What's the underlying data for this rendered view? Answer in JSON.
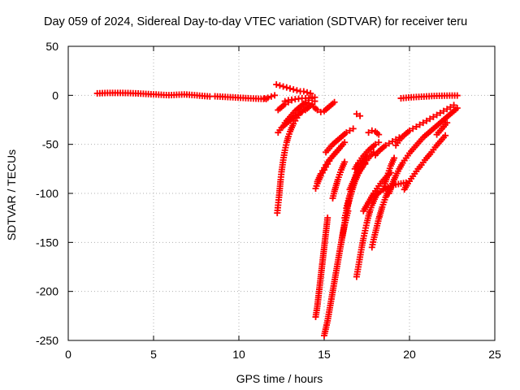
{
  "chart_data": {
    "type": "scatter",
    "title": "Day 059 of 2024, Sidereal Day-to-day VTEC variation (SDTVAR) for receiver teru",
    "xlabel": "GPS time / hours",
    "ylabel": "SDTVAR / TECUs",
    "xlim": [
      0,
      25
    ],
    "ylim": [
      -250,
      50
    ],
    "xticks": [
      0,
      5,
      10,
      15,
      20,
      25
    ],
    "yticks": [
      -250,
      -200,
      -150,
      -100,
      -50,
      0,
      50
    ],
    "grid": true,
    "marker": "plus",
    "color": "#ff0000",
    "series": [
      {
        "x": [
          1.7,
          2.0,
          2.3,
          2.6,
          2.9,
          3.2,
          3.5,
          3.8,
          4.1,
          4.4,
          4.7,
          5.0,
          5.3,
          5.6,
          5.9,
          6.2,
          6.5,
          6.8,
          7.1,
          7.4,
          7.7,
          8.0,
          8.3
        ],
        "y": [
          2,
          2.2,
          2.4,
          2.5,
          2.5,
          2.4,
          2.3,
          2.1,
          1.9,
          1.6,
          1.3,
          1.0,
          0.7,
          0.4,
          0.2,
          0.4,
          0.7,
          0.9,
          0.6,
          0.2,
          -0.3,
          -0.8,
          -1.2
        ]
      },
      {
        "x": [
          8.6,
          8.9,
          9.2,
          9.5,
          9.8,
          10.1,
          10.4,
          10.7,
          11.0,
          11.3,
          11.6
        ],
        "y": [
          -1,
          -1.3,
          -1.6,
          -1.9,
          -2.2,
          -2.5,
          -2.8,
          -3.1,
          -3.3,
          -3.6,
          -3.8
        ]
      },
      {
        "x": [
          11.5,
          11.7,
          11.9,
          12.1
        ],
        "y": [
          -3,
          -2.5,
          -1.2,
          0
        ]
      },
      {
        "x": [
          12.25,
          12.3,
          12.35,
          12.4,
          12.45,
          12.5,
          12.6,
          12.7,
          12.8,
          12.9,
          13.0,
          13.1,
          13.2,
          13.3,
          13.4,
          13.5,
          13.6,
          13.7,
          13.8,
          13.9,
          14.0,
          14.1
        ],
        "y": [
          -120,
          -112,
          -104,
          -95,
          -86,
          -78,
          -66,
          -56,
          -48,
          -42,
          -37,
          -33,
          -29,
          -26,
          -23,
          -20,
          -18,
          -16,
          -14,
          -12,
          -10,
          -8
        ]
      },
      {
        "x": [
          12.3,
          12.5,
          12.7,
          12.9,
          13.1,
          13.3,
          13.5,
          13.7,
          13.9,
          14.1,
          14.3,
          14.45
        ],
        "y": [
          -38,
          -33,
          -30,
          -27,
          -24,
          -21,
          -19,
          -17,
          -15,
          -12,
          -9,
          -6
        ]
      },
      {
        "x": [
          12.7,
          12.9,
          13.1,
          13.3,
          13.5,
          13.7,
          13.9,
          14.1,
          14.3,
          14.45
        ],
        "y": [
          -28,
          -24,
          -20,
          -16,
          -13,
          -10,
          -7,
          -5,
          -3,
          -2
        ]
      },
      {
        "x": [
          12.7,
          12.9,
          13.1,
          13.3,
          13.5,
          13.7,
          13.9,
          14.1,
          14.3
        ],
        "y": [
          -6,
          -5,
          -4.5,
          -4,
          -3.5,
          -3,
          -3,
          -2.5,
          -2
        ]
      },
      {
        "x": [
          12.2,
          12.4,
          12.6,
          12.8,
          13.0,
          13.2,
          13.4,
          13.6,
          13.8,
          14.0,
          14.2
        ],
        "y": [
          11,
          10,
          9,
          8,
          7,
          6,
          5,
          4,
          4,
          3,
          2
        ]
      },
      {
        "x": [
          12.3,
          12.5,
          12.7,
          12.9,
          13.1
        ],
        "y": [
          -15,
          -12,
          -9,
          -7,
          -5
        ]
      },
      {
        "x": [
          14.4,
          14.6,
          14.8,
          15.0,
          15.2,
          15.4,
          15.6
        ],
        "y": [
          -12,
          -15,
          -17,
          -16,
          -13,
          -10,
          -7
        ]
      },
      {
        "x": [
          14.5,
          14.6,
          14.7,
          14.8,
          14.9,
          15.0,
          15.1,
          15.2,
          15.3,
          15.4,
          15.5,
          15.6,
          15.7,
          15.8,
          15.9,
          16.0,
          16.1,
          16.2
        ],
        "y": [
          -95,
          -90,
          -86,
          -82,
          -79,
          -76,
          -73,
          -70,
          -67,
          -64,
          -62,
          -60,
          -58,
          -56,
          -54,
          -52,
          -50,
          -48
        ]
      },
      {
        "x": [
          14.6,
          14.7,
          14.8,
          14.9,
          15.0,
          15.1,
          15.2,
          15.3,
          15.4,
          15.5,
          15.6,
          15.7,
          15.8,
          15.9,
          16.0
        ],
        "y": [
          -88,
          -84,
          -80,
          -77,
          -74,
          -71,
          -68,
          -66,
          -64,
          -62,
          -60,
          -58,
          -56,
          -54,
          -52
        ]
      },
      {
        "x": [
          14.5,
          14.6,
          14.7,
          14.8,
          14.9,
          15.0,
          15.1,
          15.2
        ],
        "y": [
          -226,
          -215,
          -200,
          -185,
          -170,
          -155,
          -140,
          -125
        ]
      },
      {
        "x": [
          15.0,
          15.2,
          15.4,
          15.6,
          15.8,
          16.0,
          16.2,
          16.4
        ],
        "y": [
          -245,
          -230,
          -210,
          -190,
          -170,
          -150,
          -132,
          -118
        ]
      },
      {
        "x": [
          15.1,
          15.3,
          15.5,
          15.7,
          15.9,
          16.1,
          16.3,
          16.5,
          16.7
        ],
        "y": [
          -58,
          -54,
          -50,
          -47,
          -44,
          -41,
          -38,
          -36,
          -34
        ]
      },
      {
        "x": [
          15.5,
          15.6,
          15.7,
          15.8,
          15.9,
          16.0,
          16.1,
          16.2
        ],
        "y": [
          -105,
          -98,
          -92,
          -86,
          -81,
          -76,
          -72,
          -68
        ]
      },
      {
        "x": [
          16.0,
          16.1,
          16.2,
          16.3,
          16.4,
          16.5,
          16.6,
          16.7,
          16.8,
          16.9,
          17.0
        ],
        "y": [
          -150,
          -140,
          -130,
          -120,
          -111,
          -103,
          -96,
          -90,
          -84,
          -79,
          -75
        ]
      },
      {
        "x": [
          16.2,
          16.35,
          16.5,
          16.65,
          16.8,
          16.95,
          17.1,
          17.25,
          17.4
        ],
        "y": [
          -125,
          -115,
          -105,
          -96,
          -88,
          -82,
          -77,
          -73,
          -70
        ]
      },
      {
        "x": [
          16.3,
          16.45,
          16.6,
          16.75,
          16.9,
          17.05,
          17.2,
          17.35,
          17.5
        ],
        "y": [
          -115,
          -105,
          -96,
          -88,
          -81,
          -75,
          -70,
          -66,
          -62
        ]
      },
      {
        "x": [
          16.5,
          16.7,
          16.9,
          17.1,
          17.3,
          17.5,
          17.7,
          17.9
        ],
        "y": [
          -96,
          -88,
          -82,
          -76,
          -71,
          -66,
          -62,
          -58
        ]
      },
      {
        "x": [
          16.8,
          17.0,
          17.2,
          17.4,
          17.6,
          17.8,
          18.0,
          18.2
        ],
        "y": [
          -75,
          -69,
          -64,
          -60,
          -56,
          -53,
          -50,
          -48
        ]
      },
      {
        "x": [
          16.9,
          17.1
        ],
        "y": [
          -19,
          -21
        ]
      },
      {
        "x": [
          17.3,
          17.5,
          17.7,
          17.9,
          18.1,
          18.3,
          18.5,
          18.7,
          18.9
        ],
        "y": [
          -118,
          -112,
          -106,
          -100,
          -95,
          -90,
          -86,
          -82,
          -79
        ]
      },
      {
        "x": [
          16.9,
          17.0,
          17.1,
          17.2,
          17.3,
          17.4,
          17.5,
          17.6,
          17.7,
          17.8,
          17.9,
          18.0,
          18.1
        ],
        "y": [
          -185,
          -175,
          -165,
          -155,
          -146,
          -138,
          -130,
          -123,
          -117,
          -112,
          -108,
          -104,
          -100
        ]
      },
      {
        "x": [
          17.8,
          17.9,
          18.0,
          18.1,
          18.2,
          18.3,
          18.4,
          18.5,
          18.6,
          18.7,
          18.8
        ],
        "y": [
          -155,
          -147,
          -140,
          -133,
          -126,
          -120,
          -114,
          -109,
          -104,
          -100,
          -96
        ]
      },
      {
        "x": [
          18.0,
          18.3,
          18.6,
          18.9,
          19.2,
          19.5,
          19.8
        ],
        "y": [
          -102,
          -98,
          -95,
          -93,
          -91,
          -90,
          -89
        ]
      },
      {
        "x": [
          18.0,
          18.2,
          18.4,
          18.6,
          18.8,
          19.0,
          19.2,
          19.4
        ],
        "y": [
          -61,
          -57,
          -54,
          -51,
          -49,
          -47,
          -45,
          -43
        ]
      },
      {
        "x": [
          17.6,
          17.8,
          18.0,
          18.2
        ],
        "y": [
          -38,
          -36,
          -37,
          -40
        ]
      },
      {
        "x": [
          18.5,
          18.6,
          18.7,
          18.8,
          18.9,
          19.0,
          19.1
        ],
        "y": [
          -95,
          -88,
          -82,
          -77,
          -72,
          -68,
          -64
        ]
      },
      {
        "x": [
          18.8,
          19.0,
          19.2,
          19.4,
          19.6,
          19.8,
          20.0,
          20.2,
          20.4,
          20.6,
          20.8,
          21.0,
          21.2,
          21.4,
          21.6,
          21.8,
          22.0,
          22.2,
          22.4,
          22.6,
          22.8
        ],
        "y": [
          -100,
          -90,
          -82,
          -75,
          -69,
          -64,
          -59,
          -55,
          -51,
          -47,
          -43,
          -40,
          -37,
          -34,
          -31,
          -28,
          -25,
          -22,
          -19,
          -16,
          -13
        ]
      },
      {
        "x": [
          19.2,
          19.4,
          19.6,
          19.8,
          20.0,
          20.2,
          20.4,
          20.6,
          20.8,
          21.0,
          21.2,
          21.4,
          21.6,
          21.8,
          22.0,
          22.2,
          22.4,
          22.6
        ],
        "y": [
          -51,
          -46,
          -42,
          -39,
          -36,
          -34,
          -32,
          -30,
          -28,
          -26,
          -24,
          -22,
          -20,
          -18,
          -16,
          -14,
          -12,
          -10
        ]
      },
      {
        "x": [
          19.7,
          19.9,
          20.1,
          20.3,
          20.5,
          20.7,
          20.9,
          21.1,
          21.3,
          21.5,
          21.7,
          21.9,
          22.1
        ],
        "y": [
          -96,
          -90,
          -85,
          -80,
          -75,
          -71,
          -66,
          -62,
          -58,
          -53,
          -49,
          -45,
          -41
        ]
      },
      {
        "x": [
          21.6,
          21.8,
          22.0,
          22.2
        ],
        "y": [
          -40,
          -36,
          -32,
          -28
        ]
      },
      {
        "x": [
          19.5,
          19.8,
          20.1,
          20.4,
          20.7,
          21.0,
          21.3,
          21.6,
          21.9,
          22.2,
          22.5,
          22.8
        ],
        "y": [
          -3,
          -2.5,
          -2,
          -1.7,
          -1.4,
          -1.1,
          -0.8,
          -0.6,
          -0.4,
          -0.3,
          -0.2,
          -0.2
        ]
      }
    ]
  }
}
